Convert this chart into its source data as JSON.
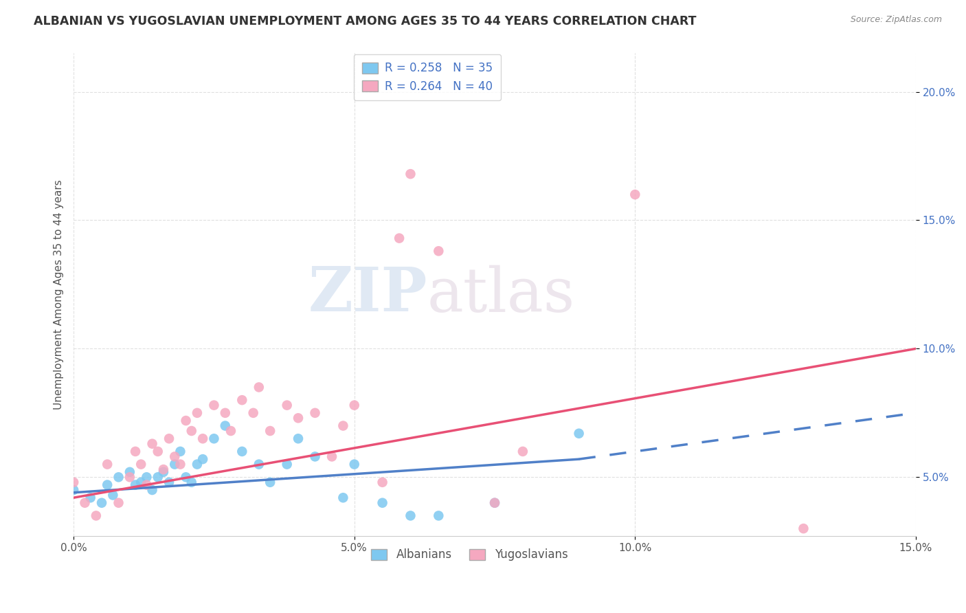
{
  "title": "ALBANIAN VS YUGOSLAVIAN UNEMPLOYMENT AMONG AGES 35 TO 44 YEARS CORRELATION CHART",
  "source": "Source: ZipAtlas.com",
  "ylabel": "Unemployment Among Ages 35 to 44 years",
  "xlabel": "",
  "xlim": [
    0.0,
    0.15
  ],
  "ylim": [
    0.027,
    0.215
  ],
  "xticks": [
    0.0,
    0.05,
    0.1,
    0.15
  ],
  "yticks": [
    0.05,
    0.1,
    0.15,
    0.2
  ],
  "xtick_labels": [
    "0.0%",
    "5.0%",
    "10.0%",
    "15.0%"
  ],
  "ytick_labels": [
    "5.0%",
    "10.0%",
    "15.0%",
    "20.0%"
  ],
  "albanian_color": "#7ec8f0",
  "yugoslavian_color": "#f5a8c0",
  "albanian_line_color": "#5080c8",
  "yugoslavian_line_color": "#e85075",
  "albanian_R": 0.258,
  "albanian_N": 35,
  "yugoslavian_R": 0.264,
  "yugoslavian_N": 40,
  "watermark_zip": "ZIP",
  "watermark_atlas": "atlas",
  "background_color": "#ffffff",
  "grid_color": "#e0e0e0",
  "albanian_x": [
    0.0,
    0.003,
    0.005,
    0.006,
    0.007,
    0.008,
    0.01,
    0.011,
    0.012,
    0.013,
    0.014,
    0.015,
    0.016,
    0.017,
    0.018,
    0.019,
    0.02,
    0.021,
    0.022,
    0.023,
    0.025,
    0.027,
    0.03,
    0.033,
    0.035,
    0.038,
    0.04,
    0.043,
    0.048,
    0.05,
    0.055,
    0.06,
    0.065,
    0.075,
    0.09
  ],
  "albanian_y": [
    0.045,
    0.042,
    0.04,
    0.047,
    0.043,
    0.05,
    0.052,
    0.047,
    0.048,
    0.05,
    0.045,
    0.05,
    0.052,
    0.048,
    0.055,
    0.06,
    0.05,
    0.048,
    0.055,
    0.057,
    0.065,
    0.07,
    0.06,
    0.055,
    0.048,
    0.055,
    0.065,
    0.058,
    0.042,
    0.055,
    0.04,
    0.035,
    0.035,
    0.04,
    0.067
  ],
  "yugoslavian_x": [
    0.0,
    0.002,
    0.004,
    0.006,
    0.008,
    0.01,
    0.011,
    0.012,
    0.013,
    0.014,
    0.015,
    0.016,
    0.017,
    0.018,
    0.019,
    0.02,
    0.021,
    0.022,
    0.023,
    0.025,
    0.027,
    0.028,
    0.03,
    0.032,
    0.033,
    0.035,
    0.038,
    0.04,
    0.043,
    0.046,
    0.048,
    0.05,
    0.055,
    0.058,
    0.06,
    0.065,
    0.075,
    0.08,
    0.1,
    0.13
  ],
  "yugoslavian_y": [
    0.048,
    0.04,
    0.035,
    0.055,
    0.04,
    0.05,
    0.06,
    0.055,
    0.047,
    0.063,
    0.06,
    0.053,
    0.065,
    0.058,
    0.055,
    0.072,
    0.068,
    0.075,
    0.065,
    0.078,
    0.075,
    0.068,
    0.08,
    0.075,
    0.085,
    0.068,
    0.078,
    0.073,
    0.075,
    0.058,
    0.07,
    0.078,
    0.048,
    0.143,
    0.168,
    0.138,
    0.04,
    0.06,
    0.16,
    0.03
  ],
  "alb_line_x_start": 0.0,
  "alb_line_x_solid_end": 0.09,
  "alb_line_x_end": 0.15,
  "alb_line_y_start": 0.044,
  "alb_line_y_at_solid_end": 0.057,
  "alb_line_y_end": 0.075,
  "yug_line_x_start": 0.0,
  "yug_line_x_end": 0.15,
  "yug_line_y_start": 0.042,
  "yug_line_y_end": 0.1
}
